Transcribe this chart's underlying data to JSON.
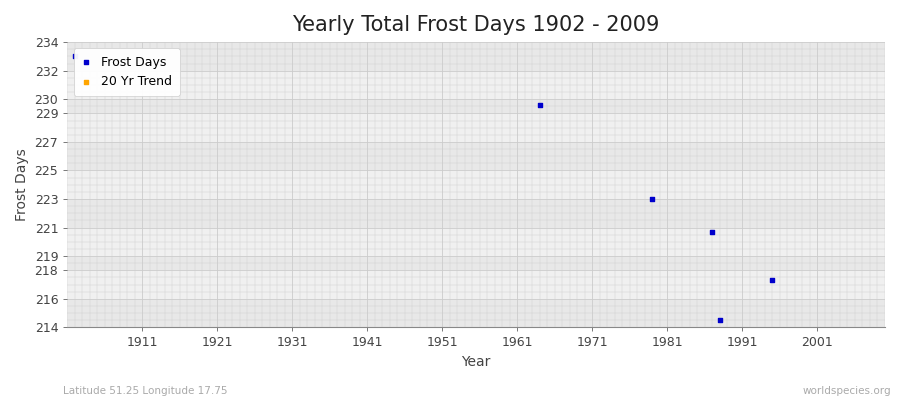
{
  "title": "Yearly Total Frost Days 1902 - 2009",
  "xlabel": "Year",
  "ylabel": "Frost Days",
  "bottom_left_label": "Latitude 51.25 Longitude 17.75",
  "bottom_right_label": "worldspecies.org",
  "background_color": "#ffffff",
  "plot_bg_color": "#f5f5f5",
  "band_color_light": "#f0f0f0",
  "band_color_alt": "#e8e8e8",
  "grid_color": "#cccccc",
  "ylim": [
    214,
    234
  ],
  "xlim": [
    1901,
    2010
  ],
  "yticks": [
    214,
    216,
    218,
    219,
    221,
    223,
    225,
    227,
    229,
    230,
    232,
    234
  ],
  "xticks": [
    1911,
    1921,
    1931,
    1941,
    1951,
    1961,
    1971,
    1981,
    1991,
    2001
  ],
  "frost_days_color": "#0000cc",
  "trend_color": "#ffa500",
  "marker_size": 3,
  "frost_days_x": [
    1902,
    1964,
    1979,
    1987,
    1988,
    1995
  ],
  "frost_days_y": [
    233.0,
    229.6,
    223.0,
    220.7,
    214.5,
    217.3
  ],
  "title_fontsize": 15,
  "axis_label_fontsize": 10,
  "tick_fontsize": 9,
  "legend_fontsize": 9
}
